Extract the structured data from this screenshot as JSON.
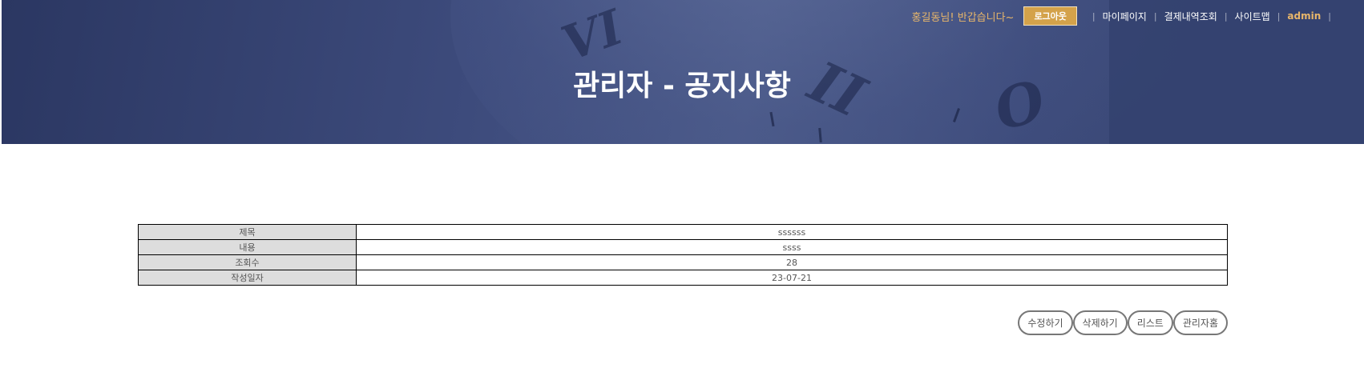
{
  "header": {
    "greeting": "홍길동님! 반갑습니다~",
    "logout_label": "로그아웃",
    "nav": [
      "마이페이지",
      "결제내역조회",
      "사이트맵",
      "admin"
    ],
    "title": "관리자 - 공지사항"
  },
  "notice": {
    "rows": [
      {
        "label": "제목",
        "value": "ssssss"
      },
      {
        "label": "내용",
        "value": "ssss"
      },
      {
        "label": "조회수",
        "value": "28"
      },
      {
        "label": "작성일자",
        "value": "23-07-21"
      }
    ]
  },
  "actions": {
    "edit": "수정하기",
    "delete": "삭제하기",
    "list": "리스트",
    "admin_home": "관리자홈"
  },
  "colors": {
    "banner": "#3d4b7c",
    "accent": "#d4a24a",
    "greeting": "#e8b66a",
    "label_bg": "#dddddd"
  }
}
